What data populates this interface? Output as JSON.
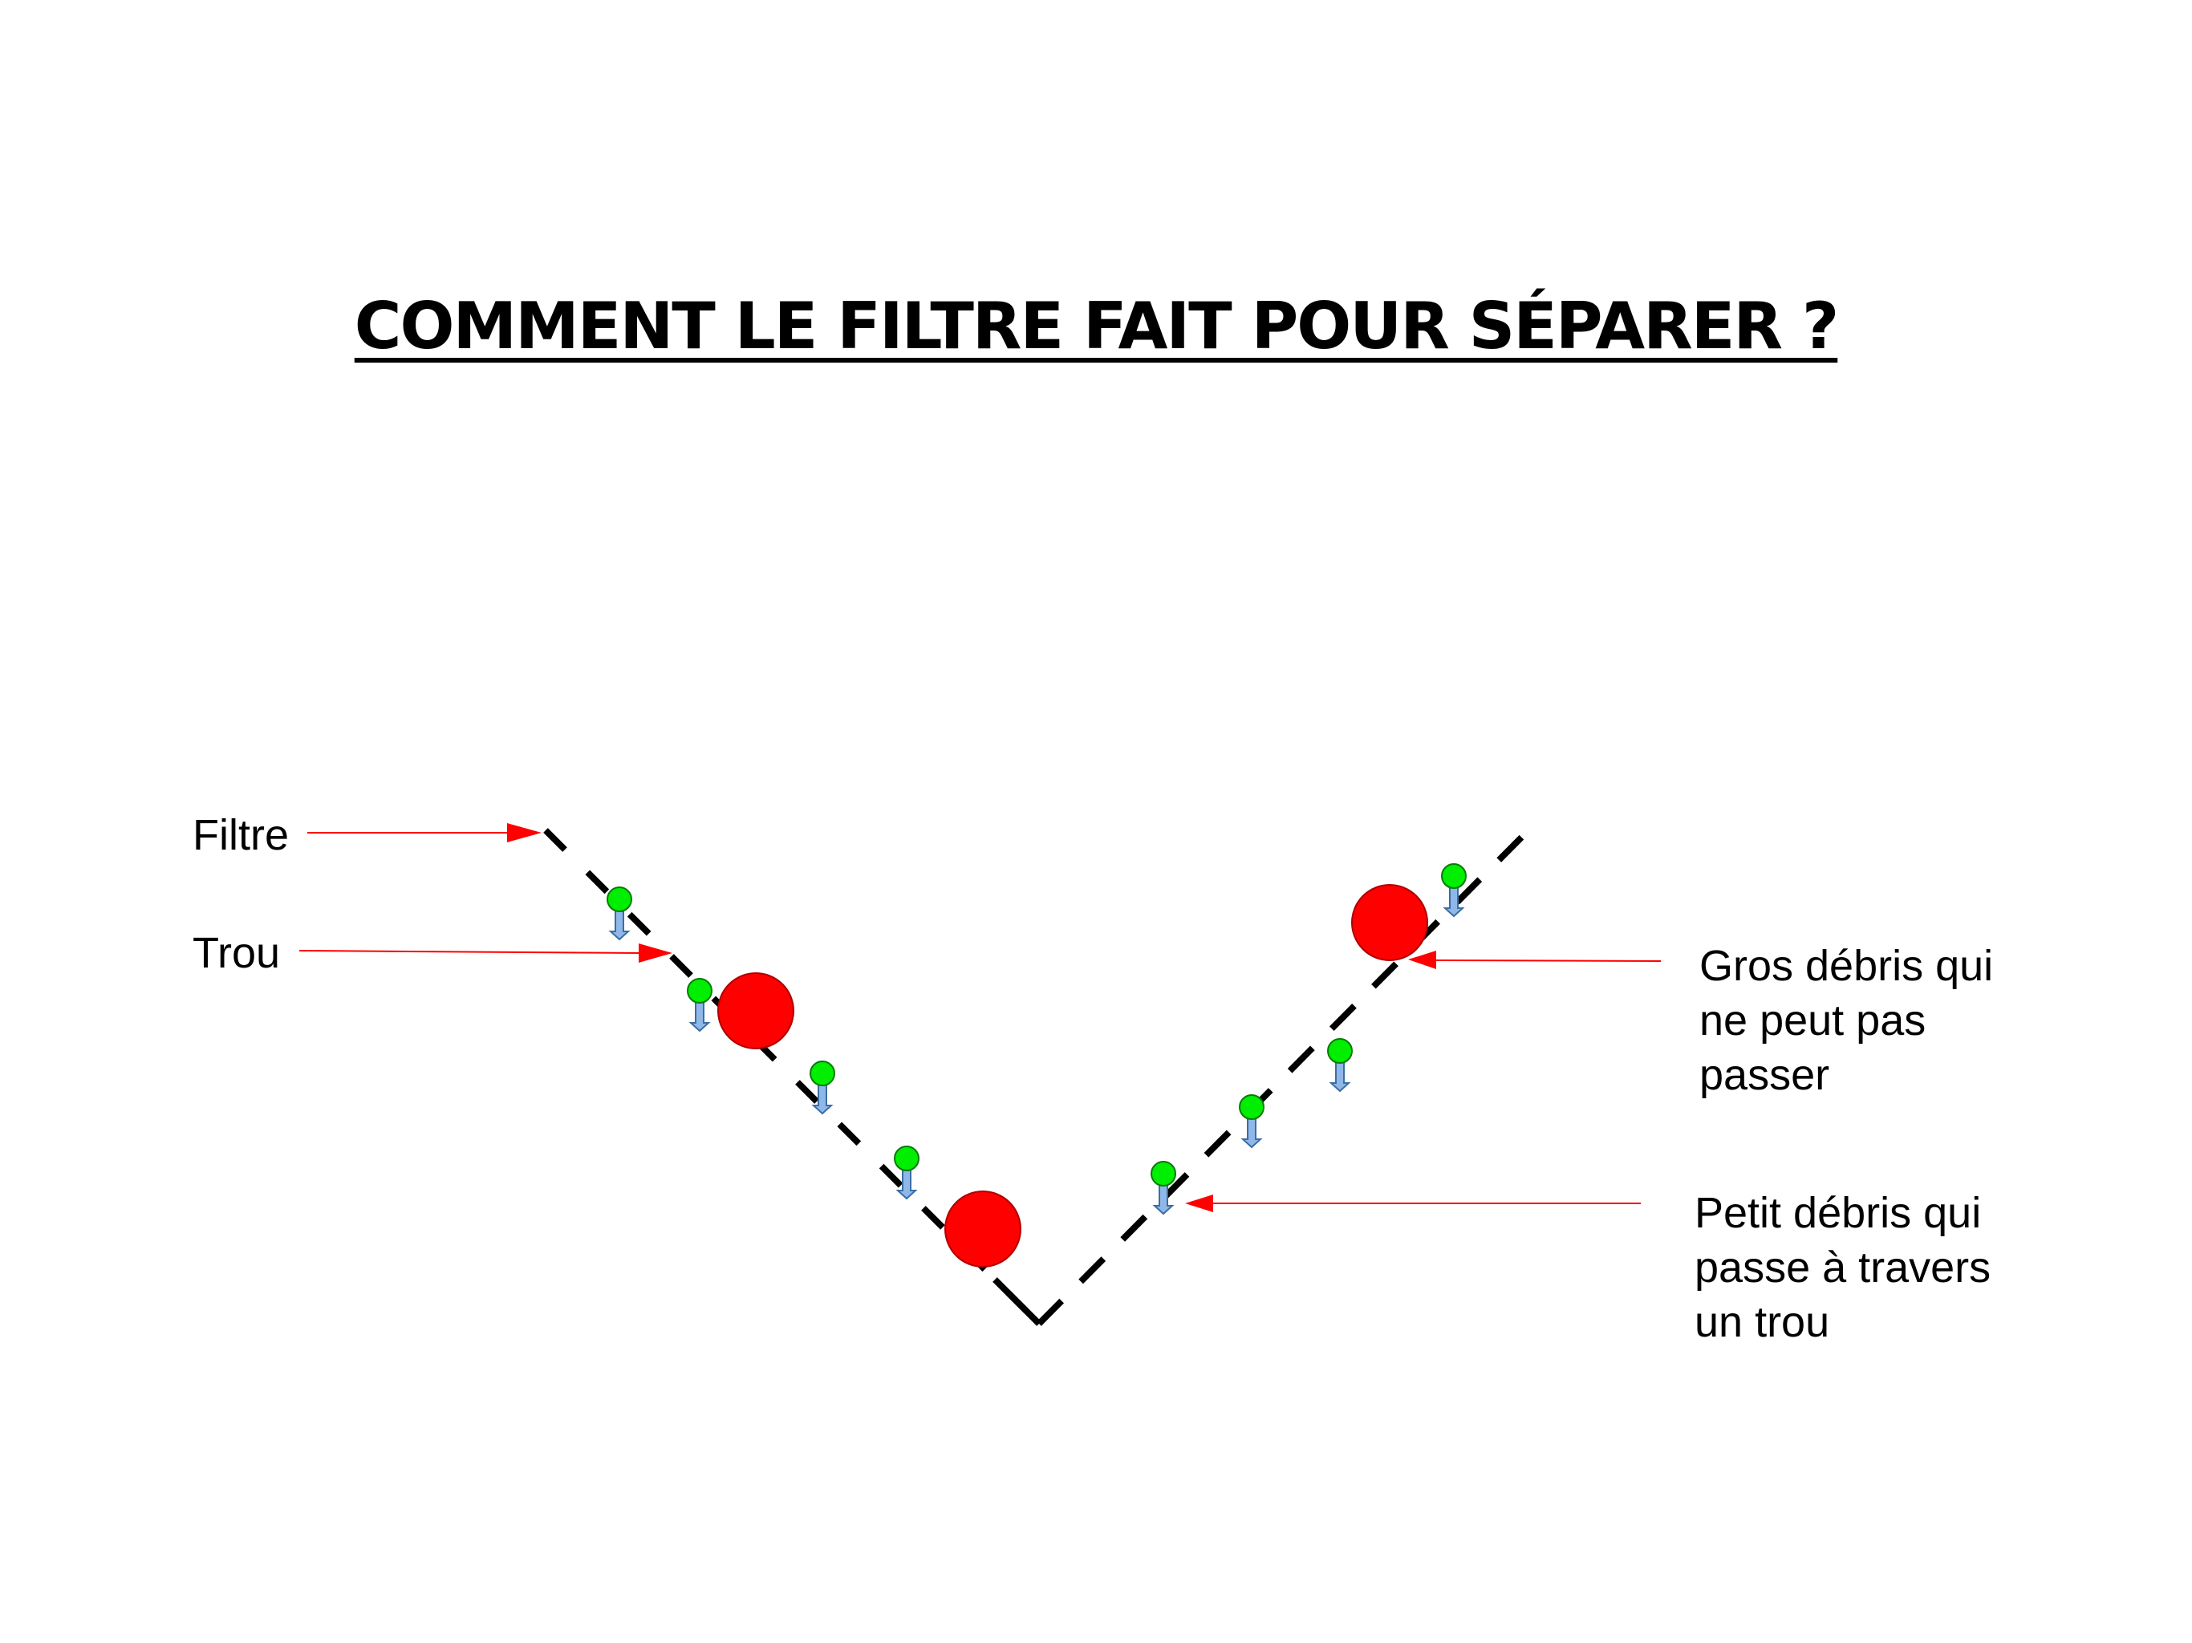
{
  "title": "COMMENT LE FILTRE FAIT POUR SÉPARER ?",
  "labels": {
    "filtre": "Filtre",
    "trou": "Trou",
    "gros_debris": [
      "Gros débris qui",
      "ne peut pas",
      "passer"
    ],
    "petit_debris": [
      "Petit débris qui",
      "passe à travers",
      "un trou"
    ]
  },
  "colors": {
    "large_debris": "#ff0000",
    "small_debris": "#00ee00",
    "arrow": "#ff0000",
    "down_arrow": "#8fb8e8",
    "filter_line": "#000000"
  }
}
